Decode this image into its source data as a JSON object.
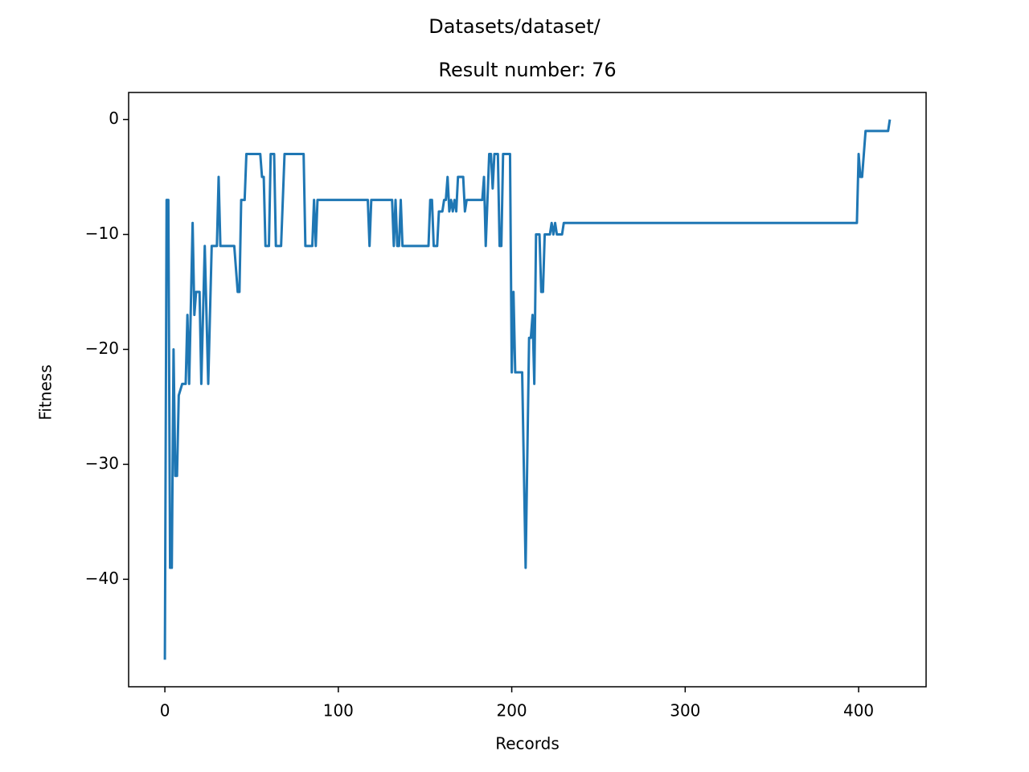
{
  "chart_data": {
    "type": "line",
    "suptitle": "Datasets/dataset/",
    "title": "Result number: 76",
    "xlabel": "Records",
    "ylabel": "Fitness",
    "color": "#1f77b4",
    "x": [
      0,
      1,
      2,
      3,
      4,
      5,
      6,
      7,
      8,
      10,
      12,
      13,
      14,
      16,
      17,
      18,
      20,
      21,
      23,
      25,
      27,
      30,
      31,
      32,
      40,
      42,
      43,
      44,
      46,
      47,
      55,
      56,
      57,
      58,
      60,
      61,
      63,
      64,
      67,
      69,
      80,
      81,
      85,
      86,
      87,
      88,
      117,
      118,
      119,
      131,
      132,
      133,
      134,
      135,
      136,
      137,
      152,
      153,
      154,
      155,
      157,
      158,
      160,
      161,
      162,
      163,
      164,
      165,
      166,
      167,
      168,
      169,
      172,
      173,
      174,
      183,
      184,
      185,
      186,
      187,
      188,
      189,
      190,
      192,
      193,
      194,
      195,
      199,
      200,
      201,
      202,
      206,
      208,
      210,
      211,
      212,
      213,
      214,
      216,
      217,
      218,
      219,
      222,
      223,
      224,
      225,
      226,
      229,
      230,
      399,
      400,
      401,
      402,
      404,
      417,
      418
    ],
    "values": [
      -47,
      -7,
      -7,
      -39,
      -39,
      -20,
      -31,
      -31,
      -24,
      -23,
      -23,
      -17,
      -23,
      -9,
      -17,
      -15,
      -15,
      -23,
      -11,
      -23,
      -11,
      -11,
      -5,
      -11,
      -11,
      -15,
      -15,
      -7,
      -7,
      -3,
      -3,
      -5,
      -5,
      -11,
      -11,
      -3,
      -3,
      -11,
      -11,
      -3,
      -3,
      -11,
      -11,
      -7,
      -11,
      -7,
      -7,
      -11,
      -7,
      -7,
      -11,
      -7,
      -11,
      -11,
      -7,
      -11,
      -11,
      -7,
      -7,
      -11,
      -11,
      -8,
      -8,
      -7,
      -7,
      -5,
      -8,
      -7,
      -8,
      -7,
      -8,
      -5,
      -5,
      -8,
      -7,
      -7,
      -5,
      -11,
      -7,
      -3,
      -3,
      -6,
      -3,
      -3,
      -11,
      -11,
      -3,
      -3,
      -22,
      -15,
      -22,
      -22,
      -39,
      -19,
      -19,
      -17,
      -23,
      -10,
      -10,
      -15,
      -15,
      -10,
      -10,
      -9,
      -10,
      -9,
      -10,
      -10,
      -9,
      -9,
      -3,
      -5,
      -5,
      -1,
      -1,
      0
    ],
    "xlim": [
      -20.9,
      438.9
    ],
    "ylim": [
      -49.35,
      2.35
    ],
    "xticks": [
      0,
      100,
      200,
      300,
      400
    ],
    "yticks": [
      0,
      {
        "value": -10,
        "label": "−10"
      },
      {
        "value": -20,
        "label": "−20"
      },
      {
        "value": -30,
        "label": "−30"
      },
      {
        "value": -40,
        "label": "−40"
      }
    ]
  }
}
